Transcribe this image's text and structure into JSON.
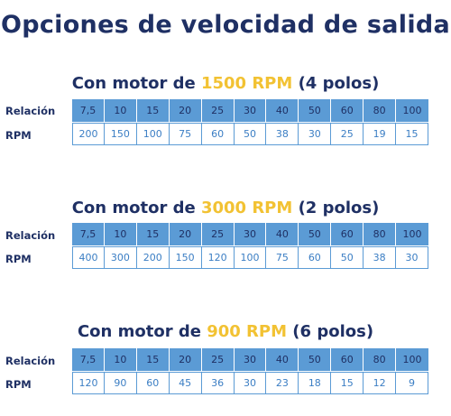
{
  "title": "Opciones de velocidad de salida",
  "row_labels": {
    "ratio": "Relación",
    "rpm": "RPM"
  },
  "sections": [
    {
      "prefix": "Con motor de ",
      "rpm": "1500 RPM",
      "suffix": " (4 polos)",
      "ratios": [
        "7,5",
        "10",
        "15",
        "20",
        "25",
        "30",
        "40",
        "50",
        "60",
        "80",
        "100"
      ],
      "rpm_values": [
        "200",
        "150",
        "100",
        "75",
        "60",
        "50",
        "38",
        "30",
        "25",
        "19",
        "15"
      ]
    },
    {
      "prefix": "Con motor de ",
      "rpm": "3000 RPM",
      "suffix": " (2 polos)",
      "ratios": [
        "7,5",
        "10",
        "15",
        "20",
        "25",
        "30",
        "40",
        "50",
        "60",
        "80",
        "100"
      ],
      "rpm_values": [
        "400",
        "300",
        "200",
        "150",
        "120",
        "100",
        "75",
        "60",
        "50",
        "38",
        "30"
      ]
    },
    {
      "prefix": "Con motor de ",
      "rpm": "900 RPM",
      "suffix": " (6 polos)",
      "ratios": [
        "7,5",
        "10",
        "15",
        "20",
        "25",
        "30",
        "40",
        "50",
        "60",
        "80",
        "100"
      ],
      "rpm_values": [
        "120",
        "90",
        "60",
        "45",
        "36",
        "30",
        "23",
        "18",
        "15",
        "12",
        "9"
      ]
    }
  ],
  "colors": {
    "header_fill": "#5b9bd5",
    "accent": "#f2c233",
    "text": "#1f3064",
    "value_text": "#3b7ec4"
  }
}
